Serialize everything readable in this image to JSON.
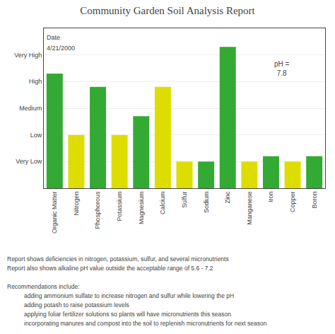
{
  "chart_data": {
    "type": "bar",
    "title": "Community Garden Soil Analysis Report",
    "categories": [
      "Organic Matter",
      "Nitrogen",
      "Phosphorous",
      "Potassium",
      "Magnesium",
      "Calcium",
      "Sulfur",
      "Sodium",
      "Zinc",
      "Manganese",
      "Iron",
      "Copper",
      "Boron"
    ],
    "values": [
      4.3,
      2.0,
      3.8,
      2.0,
      2.7,
      3.8,
      1.0,
      1.0,
      5.3,
      1.0,
      1.2,
      1.0,
      1.2
    ],
    "colors": [
      "#33aa33",
      "#dddd00",
      "#33aa33",
      "#dddd00",
      "#33aa33",
      "#dddd00",
      "#dddd00",
      "#33aa33",
      "#33aa33",
      "#dddd00",
      "#33aa33",
      "#dddd00",
      "#33aa33"
    ],
    "ylim": [
      0,
      6
    ],
    "yticks": [
      {
        "value": 1,
        "label": "Very Low"
      },
      {
        "value": 2,
        "label": "Low"
      },
      {
        "value": 3,
        "label": "Medium"
      },
      {
        "value": 4,
        "label": "High"
      },
      {
        "value": 5,
        "label": "Very High"
      }
    ],
    "grid": true,
    "annotations": [
      "Date",
      "4/21/2000",
      "pH =\n7.8",
      "Report shows deficiencies in nitrogen, potassium, sulfur, and several micronutrients",
      "Report also shows alkaline pH value outside the acceptable range of 5.6 - 7.2",
      "Recommendations include:",
      "adding ammonium sulfate to increase nitrogen and sulfur while lowering the pH",
      "adding potash to raise potassium levels",
      "applying foliar fertilizer solutions so plants will have micronutrients this season",
      "incorporating manures and compost into the soil to replenish micronutrients for next season"
    ]
  }
}
